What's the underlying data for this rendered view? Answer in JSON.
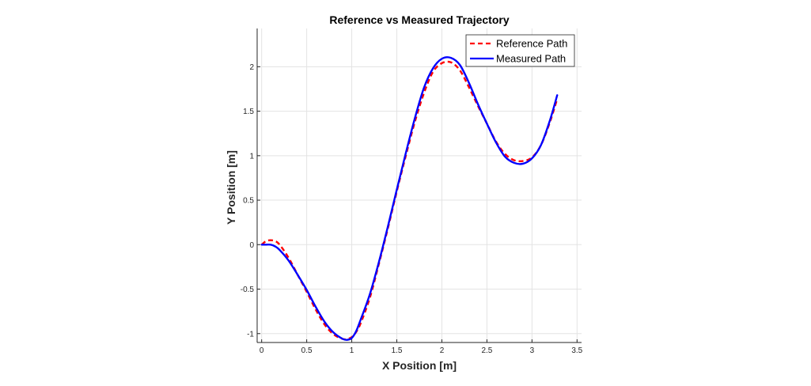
{
  "chart_data": {
    "type": "line",
    "title": "Reference vs Measured Trajectory",
    "xlabel": "X Position [m]",
    "ylabel": "Y Position [m]",
    "xlim": [
      -0.05,
      3.55
    ],
    "ylim": [
      -1.1,
      2.43
    ],
    "xticks": [
      0,
      0.5,
      1,
      1.5,
      2,
      2.5,
      3,
      3.5
    ],
    "yticks": [
      -1,
      -0.5,
      0,
      0.5,
      1,
      1.5,
      2
    ],
    "xtick_labels": [
      "0",
      "0.5",
      "1",
      "1.5",
      "2",
      "2.5",
      "3",
      "3.5"
    ],
    "ytick_labels": [
      "-1",
      "-0.5",
      "0",
      "0.5",
      "1",
      "1.5",
      "2"
    ],
    "grid": true,
    "legend_position": "top-right",
    "series": [
      {
        "name": "Reference Path",
        "color": "#ff0000",
        "style": "dashed",
        "x": [
          0,
          0.05,
          0.1,
          0.15,
          0.2,
          0.3,
          0.4,
          0.5,
          0.6,
          0.7,
          0.8,
          0.9,
          0.95,
          1.0,
          1.05,
          1.1,
          1.2,
          1.3,
          1.4,
          1.5,
          1.6,
          1.7,
          1.8,
          1.9,
          2.0,
          2.1,
          2.2,
          2.3,
          2.4,
          2.5,
          2.6,
          2.7,
          2.8,
          2.9,
          3.0,
          3.1,
          3.2,
          3.28
        ],
        "y": [
          0.0,
          0.04,
          0.05,
          0.04,
          0.0,
          -0.15,
          -0.34,
          -0.53,
          -0.73,
          -0.9,
          -1.01,
          -1.06,
          -1.06,
          -1.04,
          -0.98,
          -0.88,
          -0.6,
          -0.22,
          0.18,
          0.6,
          1.0,
          1.38,
          1.7,
          1.94,
          2.04,
          2.05,
          1.96,
          1.77,
          1.56,
          1.36,
          1.16,
          1.02,
          0.95,
          0.94,
          0.98,
          1.12,
          1.38,
          1.64
        ]
      },
      {
        "name": "Measured Path",
        "color": "#0000ff",
        "style": "solid",
        "x": [
          0,
          0.05,
          0.1,
          0.15,
          0.2,
          0.3,
          0.4,
          0.5,
          0.6,
          0.7,
          0.8,
          0.9,
          0.95,
          1.0,
          1.05,
          1.1,
          1.2,
          1.3,
          1.4,
          1.5,
          1.6,
          1.7,
          1.8,
          1.9,
          2.0,
          2.1,
          2.2,
          2.3,
          2.4,
          2.5,
          2.6,
          2.7,
          2.8,
          2.9,
          3.0,
          3.1,
          3.2,
          3.28
        ],
        "y": [
          0.0,
          0.0,
          0.0,
          -0.02,
          -0.06,
          -0.18,
          -0.34,
          -0.51,
          -0.7,
          -0.87,
          -0.99,
          -1.06,
          -1.07,
          -1.05,
          -0.97,
          -0.84,
          -0.56,
          -0.2,
          0.2,
          0.62,
          1.03,
          1.42,
          1.76,
          1.98,
          2.09,
          2.1,
          2.02,
          1.82,
          1.58,
          1.36,
          1.15,
          0.99,
          0.92,
          0.91,
          0.97,
          1.12,
          1.4,
          1.68
        ]
      }
    ]
  }
}
